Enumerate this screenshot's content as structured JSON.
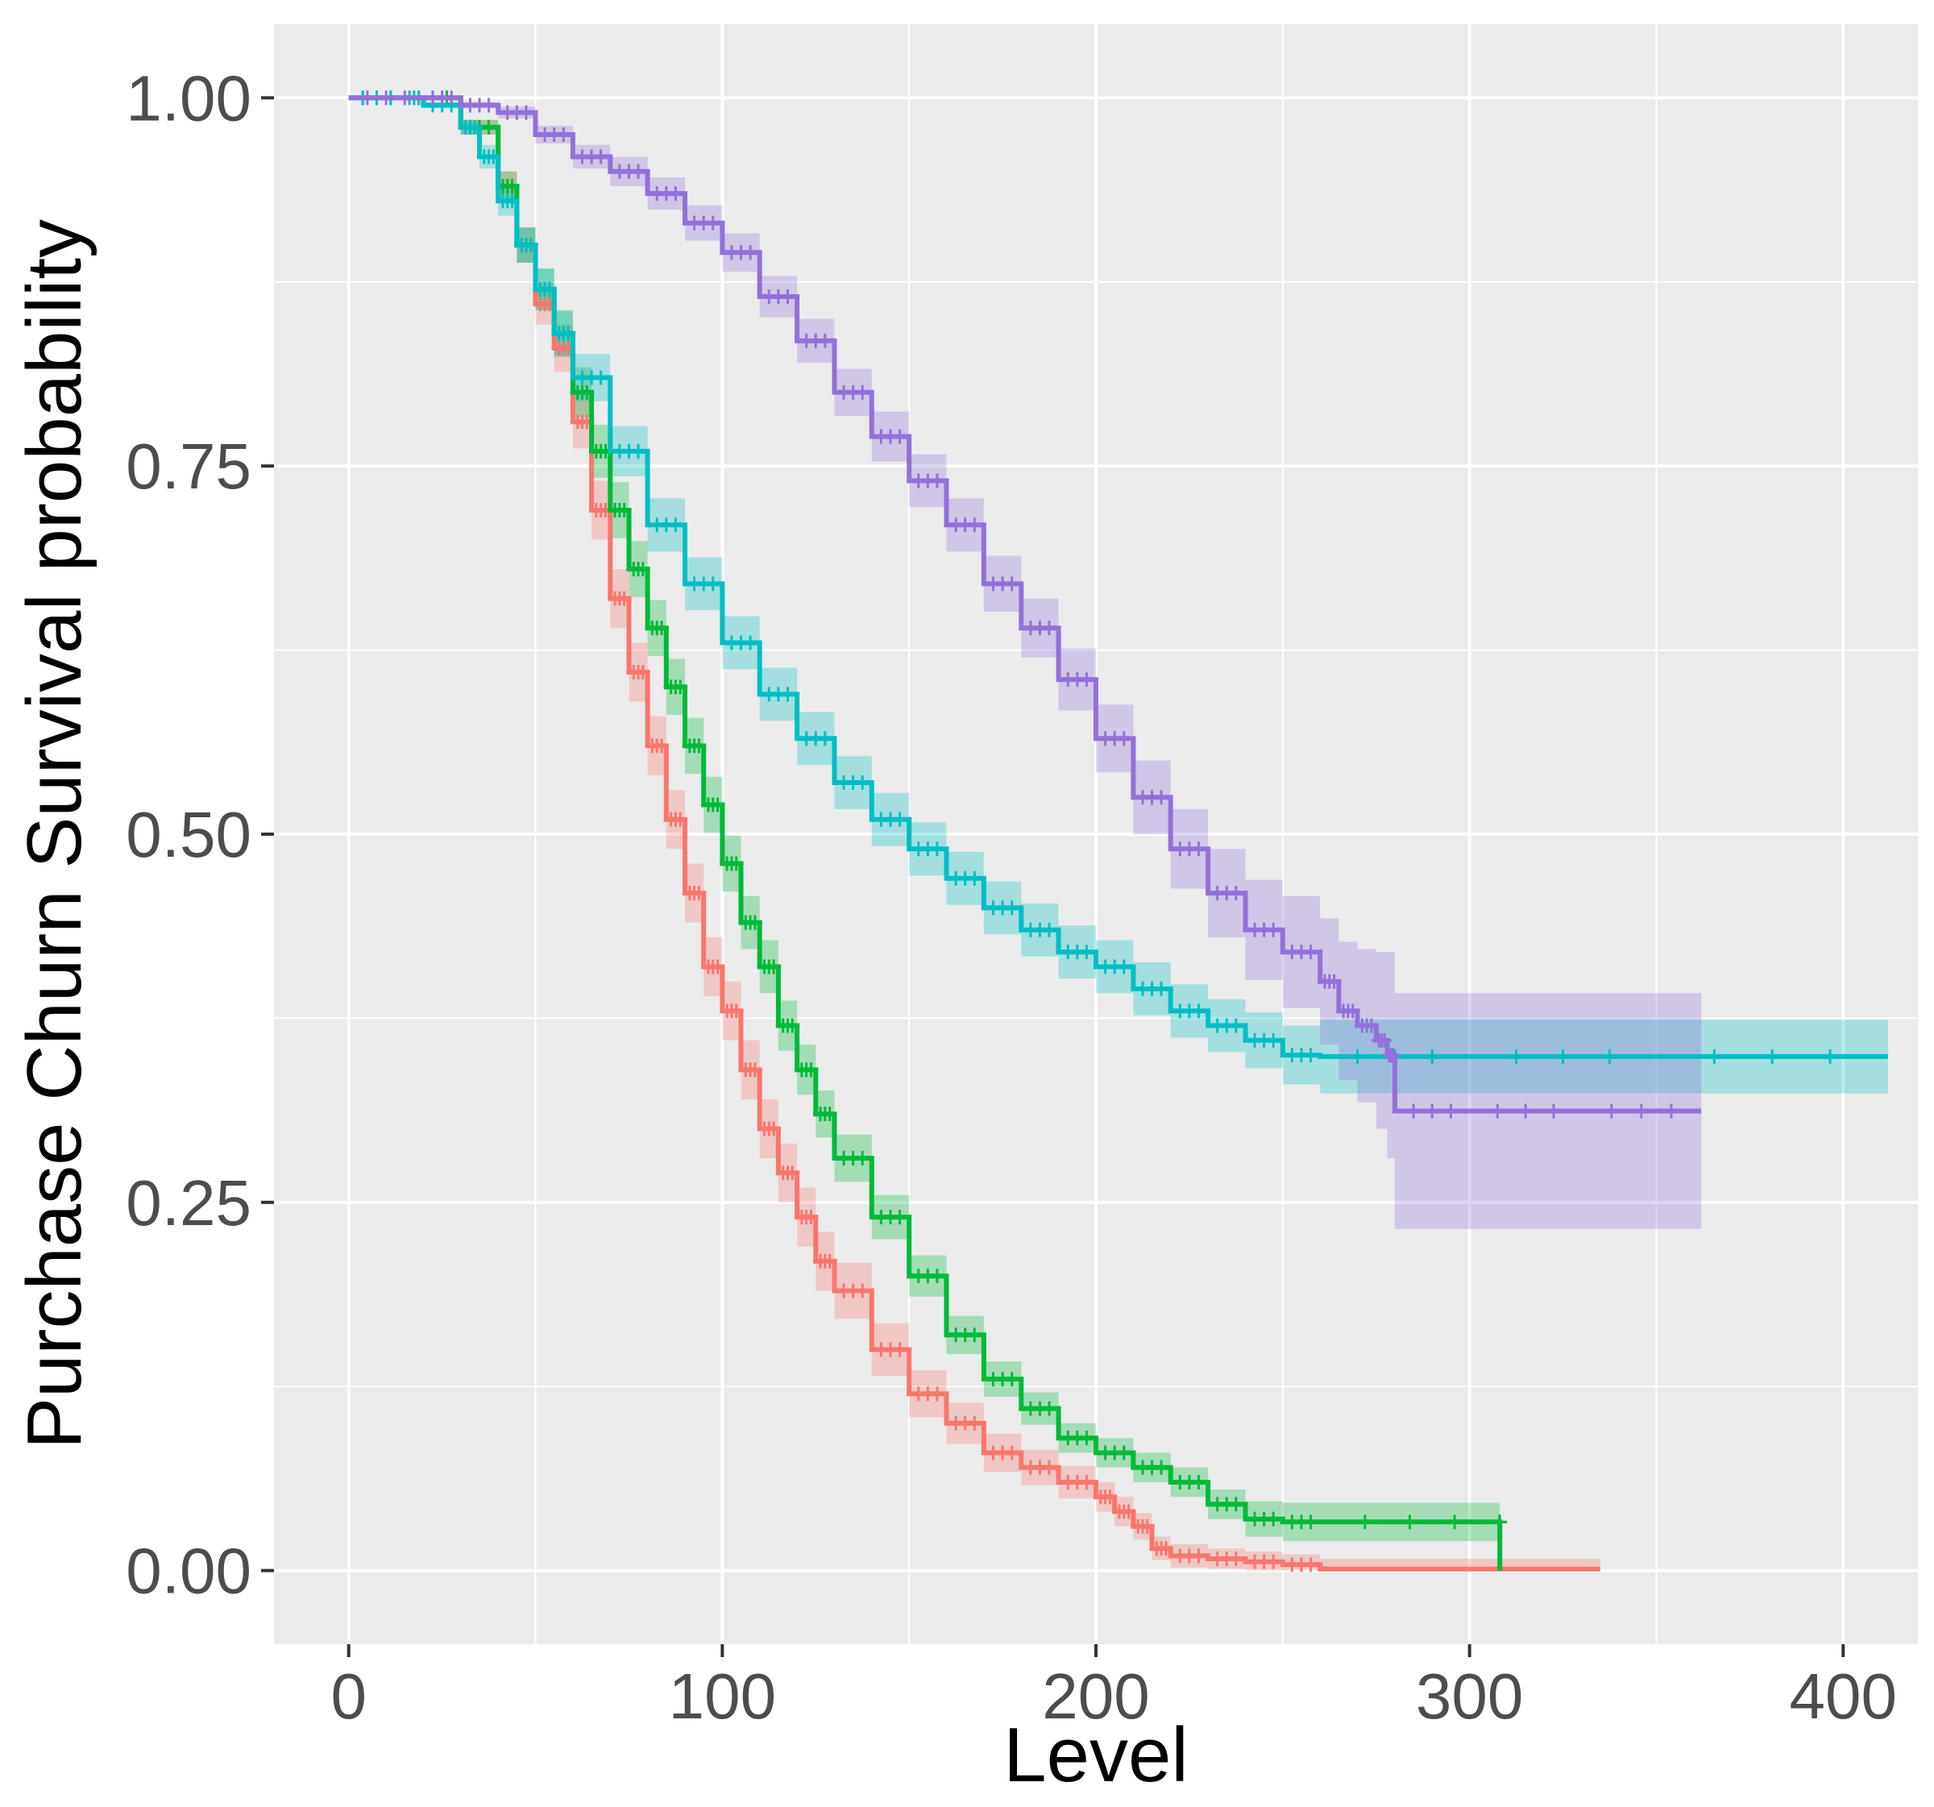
{
  "chart_data": {
    "type": "line",
    "subtype": "kaplan-meier survival curves with confidence bands",
    "title": "",
    "xlabel": "Level",
    "ylabel": "Purchase Churn Survival probability",
    "xlim": [
      -20,
      420
    ],
    "ylim": [
      -0.05,
      1.05
    ],
    "x_ticks": [
      0,
      100,
      200,
      300,
      400
    ],
    "x_tick_labels": [
      "0",
      "100",
      "200",
      "300",
      "400"
    ],
    "y_ticks": [
      0,
      0.25,
      0.5,
      0.75,
      1.0
    ],
    "y_tick_labels": [
      "0.00",
      "0.25",
      "0.50",
      "0.75",
      "1.00"
    ],
    "grid": true,
    "legend": "none",
    "colors": {
      "panel_background": "#EBEBEB",
      "grid": "#FFFFFF",
      "tick_text": "#4D4D4D",
      "title_text": "#000000"
    },
    "series": [
      {
        "name": "red",
        "color": "#F8766D",
        "x": [
          0,
          15,
          30,
          40,
          45,
          50,
          55,
          60,
          65,
          70,
          75,
          80,
          85,
          90,
          95,
          100,
          105,
          110,
          115,
          120,
          125,
          130,
          140,
          150,
          160,
          170,
          180,
          190,
          200,
          205,
          210,
          215,
          220,
          230,
          240,
          250,
          260,
          335
        ],
        "y": [
          1.0,
          1.0,
          0.98,
          0.94,
          0.9,
          0.86,
          0.83,
          0.78,
          0.72,
          0.66,
          0.61,
          0.56,
          0.51,
          0.46,
          0.41,
          0.38,
          0.34,
          0.3,
          0.27,
          0.24,
          0.21,
          0.19,
          0.15,
          0.12,
          0.1,
          0.08,
          0.07,
          0.06,
          0.05,
          0.04,
          0.03,
          0.015,
          0.01,
          0.008,
          0.006,
          0.004,
          0.001,
          0.001
        ],
        "ci_width": [
          0,
          0,
          0.005,
          0.01,
          0.012,
          0.014,
          0.016,
          0.018,
          0.02,
          0.02,
          0.02,
          0.02,
          0.02,
          0.02,
          0.02,
          0.02,
          0.02,
          0.02,
          0.02,
          0.02,
          0.02,
          0.019,
          0.018,
          0.016,
          0.014,
          0.013,
          0.012,
          0.011,
          0.01,
          0.01,
          0.009,
          0.008,
          0.008,
          0.007,
          0.007,
          0.007,
          0.007,
          0.007
        ]
      },
      {
        "name": "green",
        "color": "#00BA38",
        "x": [
          0,
          15,
          30,
          40,
          45,
          50,
          55,
          60,
          65,
          70,
          75,
          80,
          85,
          90,
          95,
          100,
          105,
          110,
          115,
          120,
          125,
          130,
          140,
          150,
          160,
          170,
          180,
          190,
          200,
          210,
          220,
          230,
          240,
          250,
          260,
          308,
          308.1
        ],
        "y": [
          1.0,
          1.0,
          0.98,
          0.94,
          0.9,
          0.87,
          0.84,
          0.8,
          0.76,
          0.72,
          0.68,
          0.64,
          0.6,
          0.56,
          0.52,
          0.48,
          0.44,
          0.41,
          0.37,
          0.34,
          0.31,
          0.28,
          0.24,
          0.2,
          0.16,
          0.13,
          0.11,
          0.09,
          0.08,
          0.07,
          0.06,
          0.045,
          0.035,
          0.033,
          0.033,
          0.033,
          0.0
        ],
        "ci_width": [
          0,
          0,
          0.005,
          0.01,
          0.012,
          0.014,
          0.016,
          0.017,
          0.018,
          0.019,
          0.019,
          0.019,
          0.019,
          0.019,
          0.019,
          0.019,
          0.018,
          0.018,
          0.017,
          0.017,
          0.016,
          0.016,
          0.015,
          0.014,
          0.013,
          0.012,
          0.011,
          0.01,
          0.01,
          0.01,
          0.01,
          0.01,
          0.012,
          0.013,
          0.013,
          0.013,
          0
        ]
      },
      {
        "name": "cyan",
        "color": "#00BFC4",
        "x": [
          0,
          15,
          20,
          30,
          35,
          40,
          45,
          50,
          55,
          60,
          70,
          80,
          90,
          100,
          110,
          120,
          130,
          140,
          150,
          160,
          170,
          180,
          190,
          200,
          210,
          220,
          230,
          240,
          250,
          260,
          300,
          350,
          412
        ],
        "y": [
          1.0,
          1.0,
          0.995,
          0.98,
          0.96,
          0.93,
          0.9,
          0.87,
          0.84,
          0.81,
          0.76,
          0.71,
          0.67,
          0.63,
          0.595,
          0.565,
          0.535,
          0.51,
          0.49,
          0.47,
          0.45,
          0.435,
          0.42,
          0.41,
          0.395,
          0.38,
          0.37,
          0.36,
          0.35,
          0.349,
          0.349,
          0.349,
          0.349
        ],
        "ci_width": [
          0,
          0,
          0.002,
          0.005,
          0.008,
          0.01,
          0.012,
          0.014,
          0.015,
          0.016,
          0.017,
          0.018,
          0.018,
          0.018,
          0.018,
          0.018,
          0.018,
          0.018,
          0.018,
          0.018,
          0.018,
          0.018,
          0.018,
          0.018,
          0.018,
          0.018,
          0.018,
          0.019,
          0.02,
          0.025,
          0.025,
          0.025,
          0.025
        ]
      },
      {
        "name": "purple",
        "color": "#9370DB",
        "x": [
          0,
          20,
          30,
          40,
          50,
          60,
          70,
          80,
          90,
          100,
          110,
          120,
          130,
          140,
          150,
          160,
          170,
          180,
          190,
          200,
          210,
          220,
          230,
          240,
          250,
          260,
          265,
          270,
          275,
          278,
          280,
          300,
          330,
          362
        ],
        "y": [
          1.0,
          1.0,
          0.995,
          0.99,
          0.975,
          0.96,
          0.95,
          0.935,
          0.915,
          0.895,
          0.865,
          0.835,
          0.8,
          0.77,
          0.74,
          0.71,
          0.67,
          0.64,
          0.605,
          0.565,
          0.525,
          0.49,
          0.46,
          0.435,
          0.42,
          0.4,
          0.38,
          0.37,
          0.36,
          0.35,
          0.312,
          0.312,
          0.312,
          0.312
        ],
        "ci_width": [
          0,
          0,
          0.002,
          0.004,
          0.006,
          0.008,
          0.01,
          0.011,
          0.012,
          0.013,
          0.014,
          0.015,
          0.016,
          0.017,
          0.018,
          0.018,
          0.019,
          0.02,
          0.021,
          0.023,
          0.025,
          0.027,
          0.03,
          0.034,
          0.038,
          0.043,
          0.047,
          0.052,
          0.06,
          0.07,
          0.08,
          0.08,
          0.08,
          0.08
        ]
      }
    ]
  }
}
